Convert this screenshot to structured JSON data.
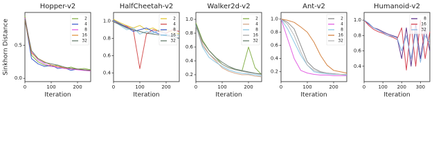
{
  "chart_data": [
    {
      "type": "line",
      "title": "Hopper-v2",
      "x_label": "Iteration",
      "y_label": "Sinkhorn Distance",
      "x": [
        0,
        25,
        50,
        75,
        100,
        125,
        150,
        175,
        200,
        225,
        250
      ],
      "xlim": [
        0,
        250
      ],
      "xticks": [
        0,
        100,
        200
      ],
      "ylim": [
        -0.05,
        1.0
      ],
      "yticks": [
        {
          "value": 0,
          "label": "0.0"
        },
        0.5
      ],
      "legend": "upper right",
      "series": [
        {
          "name": "2",
          "color": "#7aa83a",
          "values": [
            0.95,
            0.35,
            0.25,
            0.2,
            0.18,
            0.2,
            0.15,
            0.17,
            0.14,
            0.15,
            0.13
          ]
        },
        {
          "name": "4",
          "color": "#3050c8",
          "values": [
            0.9,
            0.3,
            0.22,
            0.18,
            0.2,
            0.15,
            0.16,
            0.12,
            0.14,
            0.12,
            0.12
          ]
        },
        {
          "name": "8",
          "color": "#e050e0",
          "values": [
            0.92,
            0.4,
            0.28,
            0.22,
            0.18,
            0.17,
            0.15,
            0.14,
            0.13,
            0.12,
            0.11
          ]
        },
        {
          "name": "16",
          "color": "#e08a30",
          "values": [
            0.88,
            0.38,
            0.3,
            0.25,
            0.2,
            0.18,
            0.16,
            0.15,
            0.14,
            0.13,
            0.12
          ]
        },
        {
          "name": "32",
          "color": "#5a7060",
          "values": [
            0.9,
            0.42,
            0.3,
            0.24,
            0.22,
            0.2,
            0.17,
            0.15,
            0.14,
            0.13,
            0.12
          ]
        }
      ]
    },
    {
      "type": "line",
      "title": "HalfCheetah-v2",
      "x_label": "Iteration",
      "x": [
        0,
        25,
        50,
        75,
        100,
        125,
        150,
        175,
        200,
        225,
        250
      ],
      "xlim": [
        0,
        250
      ],
      "xticks": [
        0,
        100,
        200
      ],
      "ylim": [
        0.3,
        1.1
      ],
      "yticks": [
        0.4,
        0.6,
        0.8,
        {
          "value": 1,
          "label": "1.0"
        }
      ],
      "legend": "upper right",
      "series": [
        {
          "name": "2",
          "color": "#e0c020",
          "values": [
            1.02,
            0.98,
            0.95,
            0.92,
            0.95,
            0.9,
            0.92,
            0.88,
            0.9,
            0.87,
            0.85
          ]
        },
        {
          "name": "4",
          "color": "#d04040",
          "values": [
            1.0,
            0.96,
            0.94,
            0.9,
            0.45,
            0.85,
            0.9,
            0.88,
            0.86,
            0.9,
            0.88
          ]
        },
        {
          "name": "8",
          "color": "#3050c8",
          "values": [
            1.01,
            0.97,
            0.93,
            0.88,
            0.9,
            0.92,
            0.88,
            0.85,
            0.84,
            0.82,
            0.8
          ]
        },
        {
          "name": "16",
          "color": "#80c0e0",
          "values": [
            1.0,
            0.95,
            0.9,
            0.92,
            0.85,
            0.88,
            0.86,
            0.9,
            0.85,
            0.83,
            0.84
          ]
        },
        {
          "name": "32",
          "color": "#5a7060",
          "values": [
            0.99,
            0.96,
            0.92,
            0.9,
            0.88,
            0.86,
            0.85,
            0.84,
            0.83,
            0.82,
            0.8
          ]
        }
      ]
    },
    {
      "type": "line",
      "title": "Walker2d-v2",
      "x_label": "Iteration",
      "x": [
        0,
        25,
        50,
        75,
        100,
        125,
        150,
        175,
        200,
        225,
        250
      ],
      "xlim": [
        0,
        250
      ],
      "xticks": [
        0,
        100,
        200
      ],
      "ylim": [
        0.1,
        1.1
      ],
      "yticks": [
        0.2,
        0.4,
        0.6,
        0.8,
        {
          "value": 1,
          "label": "1.0"
        }
      ],
      "legend": "upper right",
      "series": [
        {
          "name": "2",
          "color": "#7aa83a",
          "values": [
            0.95,
            0.7,
            0.55,
            0.45,
            0.35,
            0.3,
            0.28,
            0.25,
            0.6,
            0.3,
            0.2
          ]
        },
        {
          "name": "4",
          "color": "#d0a080",
          "values": [
            0.9,
            0.65,
            0.5,
            0.4,
            0.3,
            0.25,
            0.22,
            0.2,
            0.2,
            0.18,
            0.17
          ]
        },
        {
          "name": "8",
          "color": "#80c0e0",
          "values": [
            0.92,
            0.6,
            0.45,
            0.38,
            0.32,
            0.27,
            0.24,
            0.22,
            0.21,
            0.2,
            0.18
          ]
        },
        {
          "name": "16",
          "color": "#a0a0a0",
          "values": [
            0.9,
            0.62,
            0.5,
            0.42,
            0.35,
            0.3,
            0.27,
            0.25,
            0.23,
            0.22,
            0.2
          ]
        },
        {
          "name": "32",
          "color": "#5a7060",
          "values": [
            0.93,
            0.68,
            0.55,
            0.45,
            0.38,
            0.32,
            0.28,
            0.26,
            0.24,
            0.22,
            0.21
          ]
        }
      ]
    },
    {
      "type": "line",
      "title": "Ant-v2",
      "x_label": "Iteration",
      "x": [
        0,
        25,
        50,
        75,
        100,
        125,
        150,
        175,
        200,
        225,
        250
      ],
      "xlim": [
        0,
        250
      ],
      "xticks": [
        0,
        100,
        200
      ],
      "ylim": [
        0.05,
        1.1
      ],
      "yticks": [
        0.2,
        0.4,
        0.6,
        0.8,
        {
          "value": 1,
          "label": "1.0"
        }
      ],
      "legend": "upper right",
      "series": [
        {
          "name": "2",
          "color": "#808080",
          "values": [
            1.0,
            0.95,
            0.85,
            0.6,
            0.35,
            0.25,
            0.2,
            0.18,
            0.17,
            0.16,
            0.16
          ]
        },
        {
          "name": "4",
          "color": "#e050e0",
          "values": [
            1.0,
            0.7,
            0.4,
            0.22,
            0.18,
            0.16,
            0.15,
            0.15,
            0.14,
            0.14,
            0.14
          ]
        },
        {
          "name": "8",
          "color": "#80c0e0",
          "values": [
            1.0,
            0.85,
            0.65,
            0.45,
            0.3,
            0.2,
            0.18,
            0.17,
            0.16,
            0.16,
            0.15
          ]
        },
        {
          "name": "16",
          "color": "#d07830",
          "values": [
            1.0,
            0.98,
            0.95,
            0.88,
            0.8,
            0.65,
            0.45,
            0.3,
            0.22,
            0.2,
            0.18
          ]
        },
        {
          "name": "32",
          "color": "#b0b0b0",
          "values": [
            1.0,
            0.92,
            0.75,
            0.5,
            0.3,
            0.22,
            0.19,
            0.18,
            0.17,
            0.16,
            0.16
          ]
        }
      ]
    },
    {
      "type": "line",
      "title": "Humanoid-v2",
      "x_label": "Iteration",
      "x": [
        0,
        25,
        50,
        75,
        100,
        125,
        150,
        175,
        200,
        225,
        250,
        275,
        300,
        325,
        350
      ],
      "xlim": [
        0,
        350
      ],
      "xticks": [
        0,
        100,
        200,
        300
      ],
      "ylim": [
        0.2,
        1.1
      ],
      "yticks": [
        0.4,
        0.6,
        0.8,
        {
          "value": 1,
          "label": "1.0"
        }
      ],
      "legend": "upper right",
      "series": [
        {
          "name": "8",
          "color": "#502080",
          "values": [
            1.0,
            0.95,
            0.9,
            0.88,
            0.85,
            0.82,
            0.8,
            0.78,
            0.5,
            0.9,
            0.4,
            0.95,
            0.5,
            0.9,
            0.6
          ]
        },
        {
          "name": "16",
          "color": "#d03040",
          "values": [
            1.0,
            0.93,
            0.88,
            0.85,
            0.83,
            0.8,
            0.78,
            0.75,
            0.9,
            0.35,
            0.95,
            0.4,
            1.0,
            0.5,
            0.85
          ]
        },
        {
          "name": "32",
          "color": "#80b0e0",
          "values": [
            1.0,
            0.96,
            0.9,
            0.87,
            0.84,
            0.8,
            0.79,
            0.77,
            0.6,
            0.8,
            0.5,
            0.85,
            0.45,
            0.8,
            0.7
          ]
        }
      ]
    }
  ]
}
